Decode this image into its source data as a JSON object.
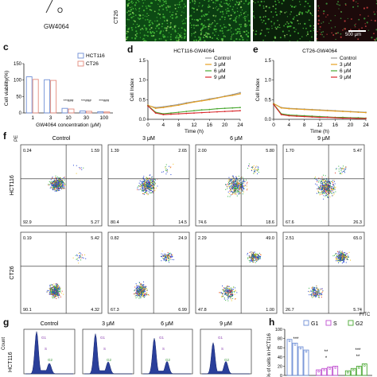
{
  "panel_a": {
    "compound_label": "GW4064",
    "ring_atom": "O"
  },
  "panel_b": {
    "row_label": "CT26",
    "scale_bar": "500 μm",
    "panel_colors": [
      "#0d4a14",
      "#0b3d12",
      "#0a200a",
      "#1c0a0a"
    ]
  },
  "panel_c": {
    "letter": "c",
    "chart_data": {
      "type": "bar",
      "ylabel": "Cell viability(%)",
      "xlabel": "GW4064 concentration (μM)",
      "categories": [
        "1",
        "3",
        "10",
        "30",
        "100"
      ],
      "ylim": [
        0,
        150
      ],
      "yticks": [
        "0",
        "50",
        "100",
        "150"
      ],
      "series": [
        {
          "name": "HCT116",
          "color": "#6f8fd6",
          "values": [
            110,
            101,
            14,
            6,
            4
          ]
        },
        {
          "name": "CT26",
          "color": "#e48a7c",
          "values": [
            102,
            99,
            12,
            5,
            3
          ]
        }
      ],
      "annotations": [
        "***###",
        "***###",
        "***###"
      ]
    }
  },
  "panel_d": {
    "letter": "d",
    "chart_data": {
      "type": "line",
      "title": "HCT116-GW4064",
      "ylabel": "Cell  Index",
      "xlabel": "Time (h)",
      "x": [
        0,
        2,
        4,
        6,
        8,
        10,
        12,
        14,
        16,
        18,
        20,
        22,
        24
      ],
      "xticks": [
        "0",
        "4",
        "8",
        "12",
        "16",
        "20",
        "24"
      ],
      "ylim": [
        0,
        1.5
      ],
      "yticks": [
        "0.0",
        "0.5",
        "1.0",
        "1.5"
      ],
      "series": [
        {
          "name": "Control",
          "color": "#9a9a9a",
          "values": [
            0.35,
            0.3,
            0.32,
            0.35,
            0.38,
            0.42,
            0.45,
            0.48,
            0.52,
            0.55,
            0.59,
            0.63,
            0.68
          ]
        },
        {
          "name": "3 μM",
          "color": "#e6a020",
          "values": [
            0.36,
            0.28,
            0.3,
            0.33,
            0.36,
            0.4,
            0.44,
            0.47,
            0.5,
            0.54,
            0.58,
            0.61,
            0.65
          ]
        },
        {
          "name": "6 μM",
          "color": "#4aa832",
          "values": [
            0.35,
            0.18,
            0.14,
            0.16,
            0.18,
            0.2,
            0.22,
            0.24,
            0.25,
            0.27,
            0.28,
            0.29,
            0.3
          ]
        },
        {
          "name": "9 μM",
          "color": "#d8262a",
          "values": [
            0.34,
            0.16,
            0.12,
            0.13,
            0.14,
            0.15,
            0.16,
            0.17,
            0.18,
            0.19,
            0.2,
            0.21,
            0.22
          ]
        }
      ]
    }
  },
  "panel_e": {
    "letter": "e",
    "chart_data": {
      "type": "line",
      "title": "CT26-GW4064",
      "ylabel": "Cell  Index",
      "xlabel": "Time (h)",
      "x": [
        0,
        2,
        4,
        6,
        8,
        10,
        12,
        14,
        16,
        18,
        20,
        22,
        24
      ],
      "xticks": [
        "0",
        "4",
        "8",
        "12",
        "16",
        "20",
        "24"
      ],
      "ylim": [
        0,
        1.5
      ],
      "yticks": [
        "0.0",
        "0.5",
        "1.0",
        "1.5"
      ],
      "series": [
        {
          "name": "Control",
          "color": "#9a9a9a",
          "values": [
            0.4,
            0.3,
            0.28,
            0.27,
            0.26,
            0.25,
            0.24,
            0.23,
            0.22,
            0.21,
            0.2,
            0.19,
            0.18
          ]
        },
        {
          "name": "3 μM",
          "color": "#e6a020",
          "values": [
            0.4,
            0.29,
            0.27,
            0.26,
            0.25,
            0.24,
            0.23,
            0.22,
            0.21,
            0.2,
            0.19,
            0.18,
            0.17
          ]
        },
        {
          "name": "6 μM",
          "color": "#4aa832",
          "values": [
            0.39,
            0.14,
            0.11,
            0.1,
            0.09,
            0.08,
            0.07,
            0.06,
            0.05,
            0.05,
            0.04,
            0.04,
            0.03
          ]
        },
        {
          "name": "9 μM",
          "color": "#d8262a",
          "values": [
            0.38,
            0.12,
            0.09,
            0.08,
            0.07,
            0.06,
            0.05,
            0.05,
            0.04,
            0.03,
            0.03,
            0.02,
            0.02
          ]
        }
      ]
    }
  },
  "panel_f": {
    "letter": "f",
    "y_axis": "PE",
    "x_axis": "FITC",
    "columns": [
      "Control",
      "3 μM",
      "6 μM",
      "9 μM"
    ],
    "rows": [
      {
        "name": "HCT116",
        "quads": [
          {
            "ul": "0.24",
            "ur": "1.59",
            "ll": "92.9",
            "lr": "5.27",
            "mx": 0.45,
            "my": 0.52,
            "spread": 0.14,
            "upper": 0.02
          },
          {
            "ul": "1.39",
            "ur": "2.65",
            "ll": "80.4",
            "lr": "14.5",
            "mx": 0.48,
            "my": 0.5,
            "spread": 0.16,
            "upper": 0.04
          },
          {
            "ul": "2.00",
            "ur": "5.80",
            "ll": "74.6",
            "lr": "18.6",
            "mx": 0.5,
            "my": 0.5,
            "spread": 0.18,
            "upper": 0.08
          },
          {
            "ul": "1.70",
            "ur": "5.47",
            "ll": "67.6",
            "lr": "26.3",
            "mx": 0.52,
            "my": 0.48,
            "spread": 0.18,
            "upper": 0.07
          }
        ]
      },
      {
        "name": "CT26",
        "quads": [
          {
            "ul": "0.19",
            "ur": "5.42",
            "ll": "90.1",
            "lr": "4.32",
            "mx": 0.42,
            "my": 0.28,
            "spread": 0.12,
            "upper": 0.06
          },
          {
            "ul": "0.82",
            "ur": "24.9",
            "ll": "67.3",
            "lr": "6.99",
            "mx": 0.4,
            "my": 0.28,
            "spread": 0.13,
            "upper": 0.25
          },
          {
            "ul": "2.29",
            "ur": "49.0",
            "ll": "47.8",
            "lr": "1.00",
            "mx": 0.4,
            "my": 0.26,
            "spread": 0.13,
            "upper": 0.49
          },
          {
            "ul": "2.51",
            "ur": "65.0",
            "ll": "26.7",
            "lr": "5.74",
            "mx": 0.4,
            "my": 0.26,
            "spread": 0.13,
            "upper": 0.65
          }
        ]
      }
    ]
  },
  "panel_g": {
    "letter": "g",
    "y_axis": "Count",
    "row_label": "HCT116",
    "columns": [
      "Control",
      "3 μM",
      "6 μM",
      "9 μM"
    ],
    "gate_labels": [
      "G1",
      "S",
      "G2"
    ]
  },
  "panel_h": {
    "letter": "h",
    "ylabel": "% of cells in HCT116",
    "legend": [
      "G1",
      "S",
      "G2"
    ],
    "yticks": [
      "0",
      "20",
      "40",
      "60",
      "80",
      "100"
    ],
    "sig": [
      "***",
      "*",
      "**",
      "***",
      "**"
    ],
    "chart_data": {
      "type": "bar",
      "ylabel": "% of cells in HCT116",
      "ylim": [
        0,
        100
      ],
      "series": [
        {
          "name": "G1",
          "color": "#6f8fd6",
          "values": [
            78,
            70,
            62,
            55
          ]
        },
        {
          "name": "S",
          "color": "#c04fd0",
          "values": [
            12,
            15,
            18,
            20
          ]
        },
        {
          "name": "G2",
          "color": "#4aa832",
          "values": [
            10,
            15,
            20,
            25
          ]
        }
      ]
    }
  }
}
